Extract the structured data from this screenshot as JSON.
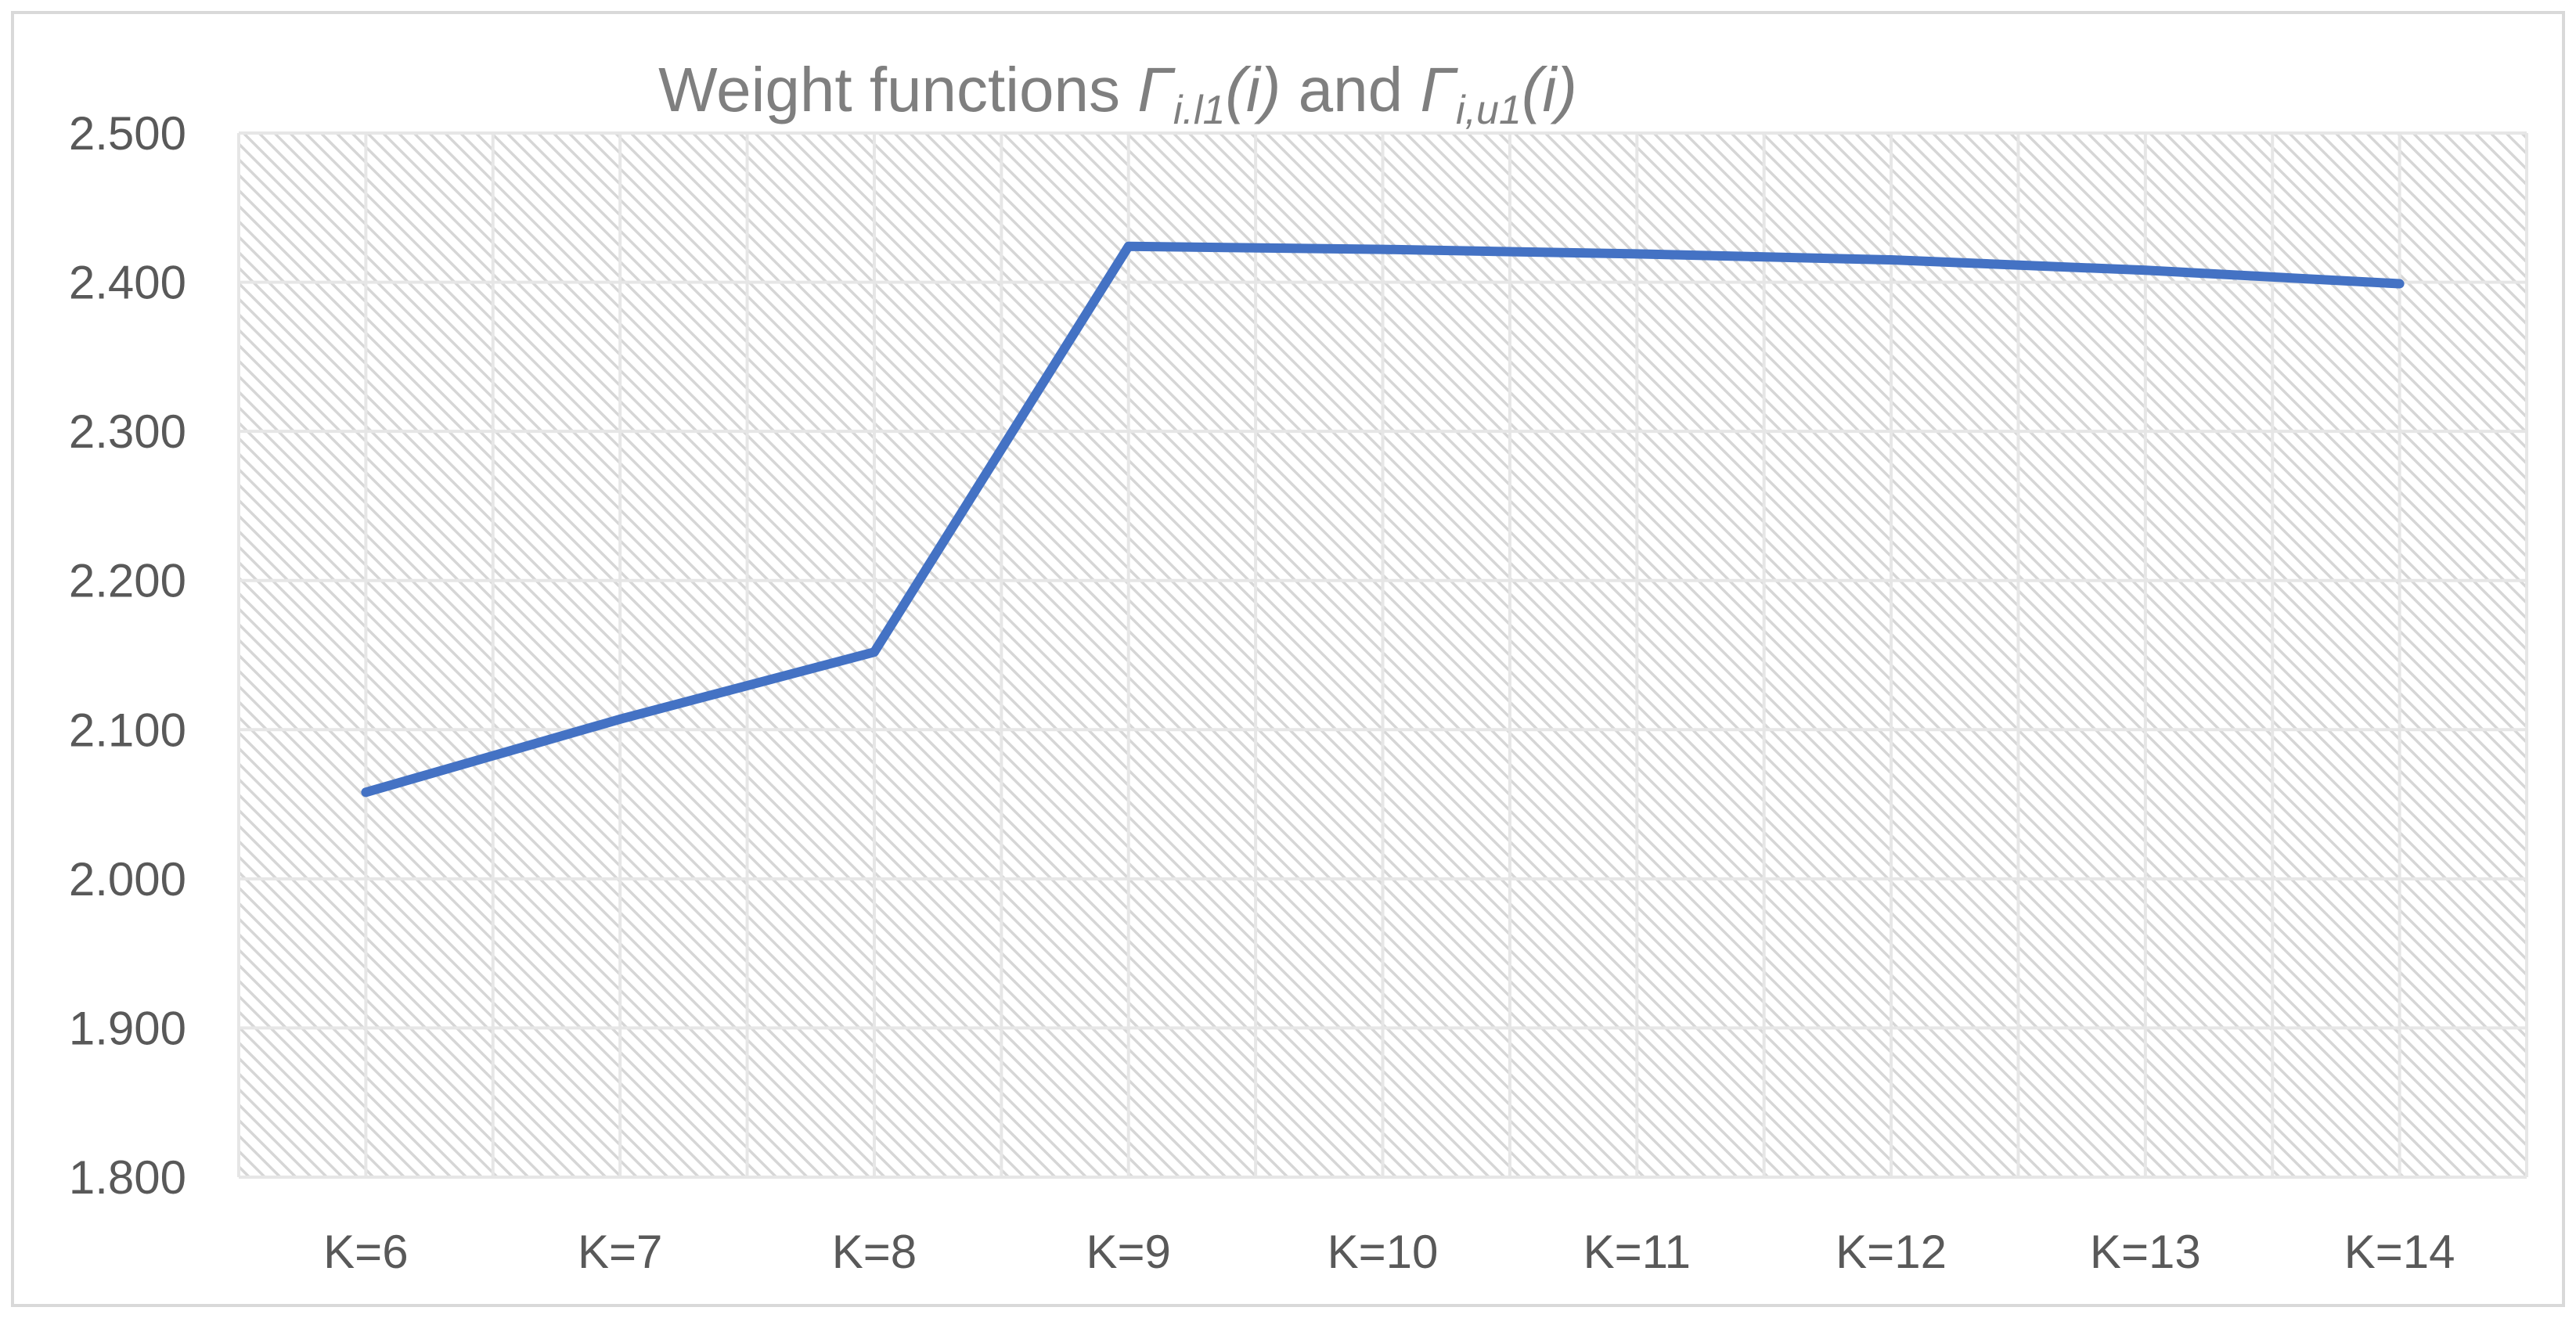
{
  "chart_data": {
    "type": "line",
    "title": {
      "prefix": "Weight functions",
      "g1": "Γ",
      "g1_sub": "i.l1",
      "g1_arg": "(i)",
      "joiner": "and",
      "g2": "Γ",
      "g2_sub": "i,u1",
      "g2_arg": "(i)"
    },
    "xlabel": "",
    "ylabel": "",
    "categories": [
      "K=6",
      "K=7",
      "K=8",
      "K=9",
      "K=10",
      "K=11",
      "K=12",
      "K=13",
      "K=14"
    ],
    "series": [
      {
        "values": [
          2.058,
          2.107,
          2.152,
          2.424,
          2.422,
          2.419,
          2.415,
          2.408,
          2.399
        ],
        "color": "#4472c4"
      }
    ],
    "ylim": [
      1.8,
      2.5
    ],
    "yticks": [
      1.8,
      1.9,
      2.0,
      2.1,
      2.2,
      2.3,
      2.4,
      2.5
    ],
    "ytick_labels": [
      "1.800",
      "1.900",
      "2.000",
      "2.100",
      "2.200",
      "2.300",
      "2.400",
      "2.500"
    ],
    "grid": true,
    "legend": "none",
    "colors": {
      "line": "#4472c4",
      "grid": "#e6e6e6",
      "hatch": "#d9d9d9",
      "text": "#595959",
      "title": "#7f7f7f",
      "border": "#d9d9d9"
    }
  }
}
